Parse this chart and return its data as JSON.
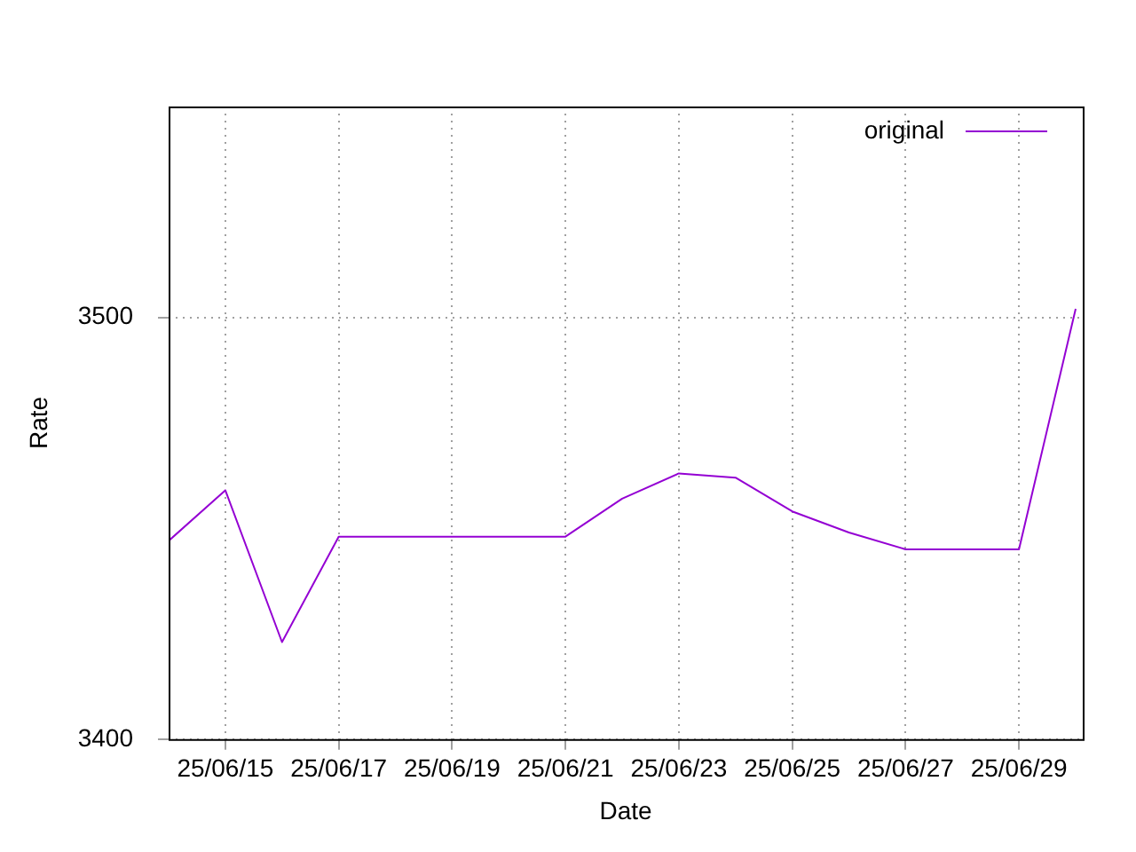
{
  "chart_data": {
    "type": "line",
    "xlabel": "Date",
    "ylabel": "Rate",
    "x": [
      "--06-14",
      "--06-15",
      "--06-16",
      "--06-17",
      "--06-18",
      "--06-19",
      "--06-20",
      "--06-21",
      "--06-22",
      "--06-23",
      "--06-24",
      "--06-25",
      "--06-26",
      "--06-27",
      "--06-28",
      "--06-29",
      "--06-30"
    ],
    "series": [
      {
        "name": "original",
        "color": "#9400d3",
        "values": [
          3447,
          3459,
          3423,
          3448,
          3448,
          3448,
          3448,
          3448,
          3457,
          3463,
          3462,
          3454,
          3449,
          3445,
          3445,
          3445,
          3502
        ]
      }
    ],
    "xlim": [
      "--06-14",
      "--06-30T03:00"
    ],
    "xticks": [
      {
        "value": "--06-15",
        "label": "25/06/15"
      },
      {
        "value": "--06-17",
        "label": "25/06/17"
      },
      {
        "value": "--06-19",
        "label": "25/06/19"
      },
      {
        "value": "--06-21",
        "label": "25/06/21"
      },
      {
        "value": "--06-23",
        "label": "25/06/23"
      },
      {
        "value": "--06-25",
        "label": "25/06/25"
      },
      {
        "value": "--06-27",
        "label": "25/06/27"
      },
      {
        "value": "--06-29",
        "label": "25/06/29"
      }
    ],
    "ylim": [
      3400,
      3550
    ],
    "yticks": [
      3400,
      3500
    ],
    "grid": true,
    "legend": "top right",
    "marker": "none",
    "line_style": "solid"
  }
}
